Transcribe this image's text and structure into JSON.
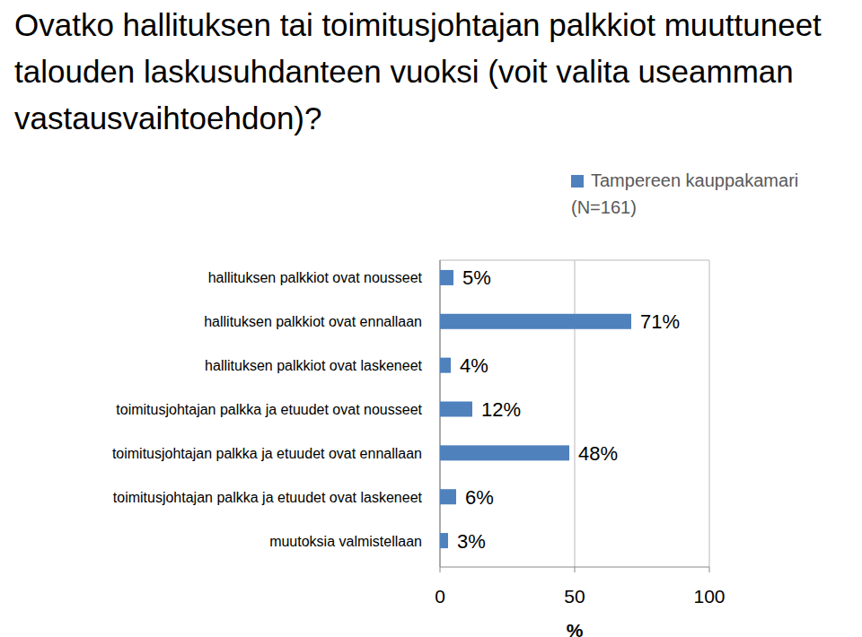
{
  "chart_data": {
    "type": "bar",
    "orientation": "horizontal",
    "title": "Ovatko hallituksen tai toimitusjohtajan palkkiot muuttuneet talouden laskusuhdanteen vuoksi (voit valita useamman vastausvaihtoehdon)?",
    "categories": [
      "hallituksen palkkiot ovat nousseet",
      "hallituksen palkkiot ovat ennallaan",
      "hallituksen palkkiot ovat laskeneet",
      "toimitusjohtajan palkka ja etuudet ovat nousseet",
      "toimitusjohtajan palkka ja etuudet ovat ennallaan",
      "toimitusjohtajan palkka ja etuudet ovat laskeneet",
      "muutoksia valmistellaan"
    ],
    "series": [
      {
        "name": "Tampereen kauppakamari (N=161)",
        "color": "#4f81bd",
        "values": [
          5,
          71,
          4,
          12,
          48,
          6,
          3
        ],
        "value_labels": [
          "5%",
          "71%",
          "4%",
          "12%",
          "48%",
          "6%",
          "3%"
        ]
      }
    ],
    "xlabel": "%",
    "xlim": [
      0,
      100
    ],
    "xticks": [
      0,
      50,
      100
    ],
    "grid": true,
    "data_labels": true,
    "legend": "top-right"
  }
}
